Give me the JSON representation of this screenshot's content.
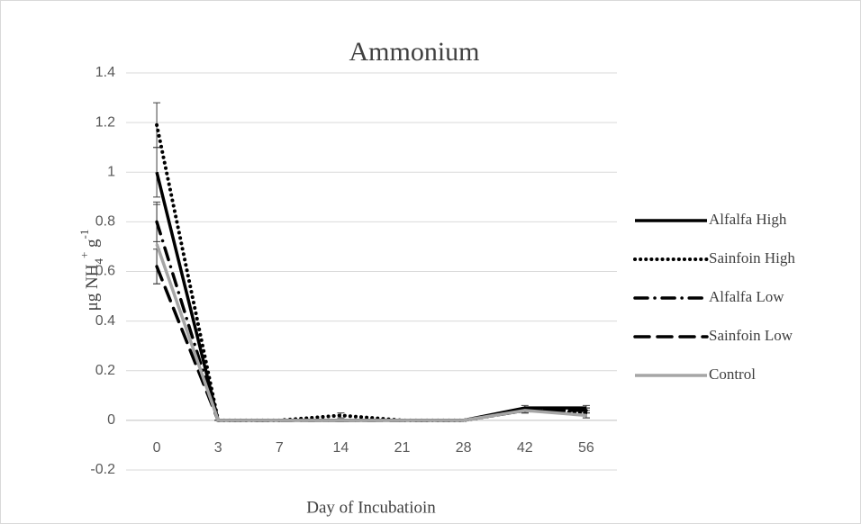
{
  "chart_data": {
    "type": "line",
    "title": "Ammonium",
    "x_label": "Day of Incubatioin",
    "y_label_parts": [
      "μg NH",
      "4",
      "+",
      " g",
      "-1"
    ],
    "categories": [
      "0",
      "3",
      "7",
      "14",
      "21",
      "28",
      "42",
      "56"
    ],
    "ylim": [
      -0.2,
      1.4
    ],
    "yticks": [
      -0.2,
      0,
      0.2,
      0.4,
      0.6,
      0.8,
      1,
      1.2,
      1.4
    ],
    "grid": true,
    "legend": "right",
    "series": [
      {
        "name": "Alfalfa High",
        "color": "#000000",
        "dash": "solid",
        "values": [
          1.0,
          0,
          0,
          0,
          0,
          0,
          0.05,
          0.05
        ],
        "errors": [
          0.1,
          0,
          0,
          0.005,
          0,
          0,
          0.01,
          0.01
        ]
      },
      {
        "name": "Sainfoin High",
        "color": "#000000",
        "dash": "dot",
        "values": [
          1.19,
          0,
          0,
          0.02,
          0,
          0,
          0.04,
          0.03
        ],
        "errors": [
          0.09,
          0,
          0,
          0.01,
          0,
          0,
          0.01,
          0.02
        ]
      },
      {
        "name": "Alfalfa Low",
        "color": "#000000",
        "dash": "dashdot",
        "values": [
          0.8,
          0,
          0,
          0,
          0,
          0,
          0.04,
          0.04
        ],
        "errors": [
          0.08,
          0,
          0,
          0,
          0,
          0,
          0.01,
          0.01
        ]
      },
      {
        "name": "Sainfoin Low",
        "color": "#000000",
        "dash": "dash",
        "values": [
          0.62,
          0,
          0,
          0,
          0,
          0,
          0.04,
          0.04
        ],
        "errors": [
          0.07,
          0,
          0,
          0,
          0,
          0,
          0.01,
          0.01
        ]
      },
      {
        "name": "Control",
        "color": "#a6a6a6",
        "dash": "solid",
        "values": [
          0.71,
          0,
          0,
          0,
          0,
          0,
          0.04,
          0.02
        ],
        "errors": [
          0.16,
          0,
          0,
          0,
          0,
          0,
          0.01,
          0.01
        ]
      }
    ]
  }
}
